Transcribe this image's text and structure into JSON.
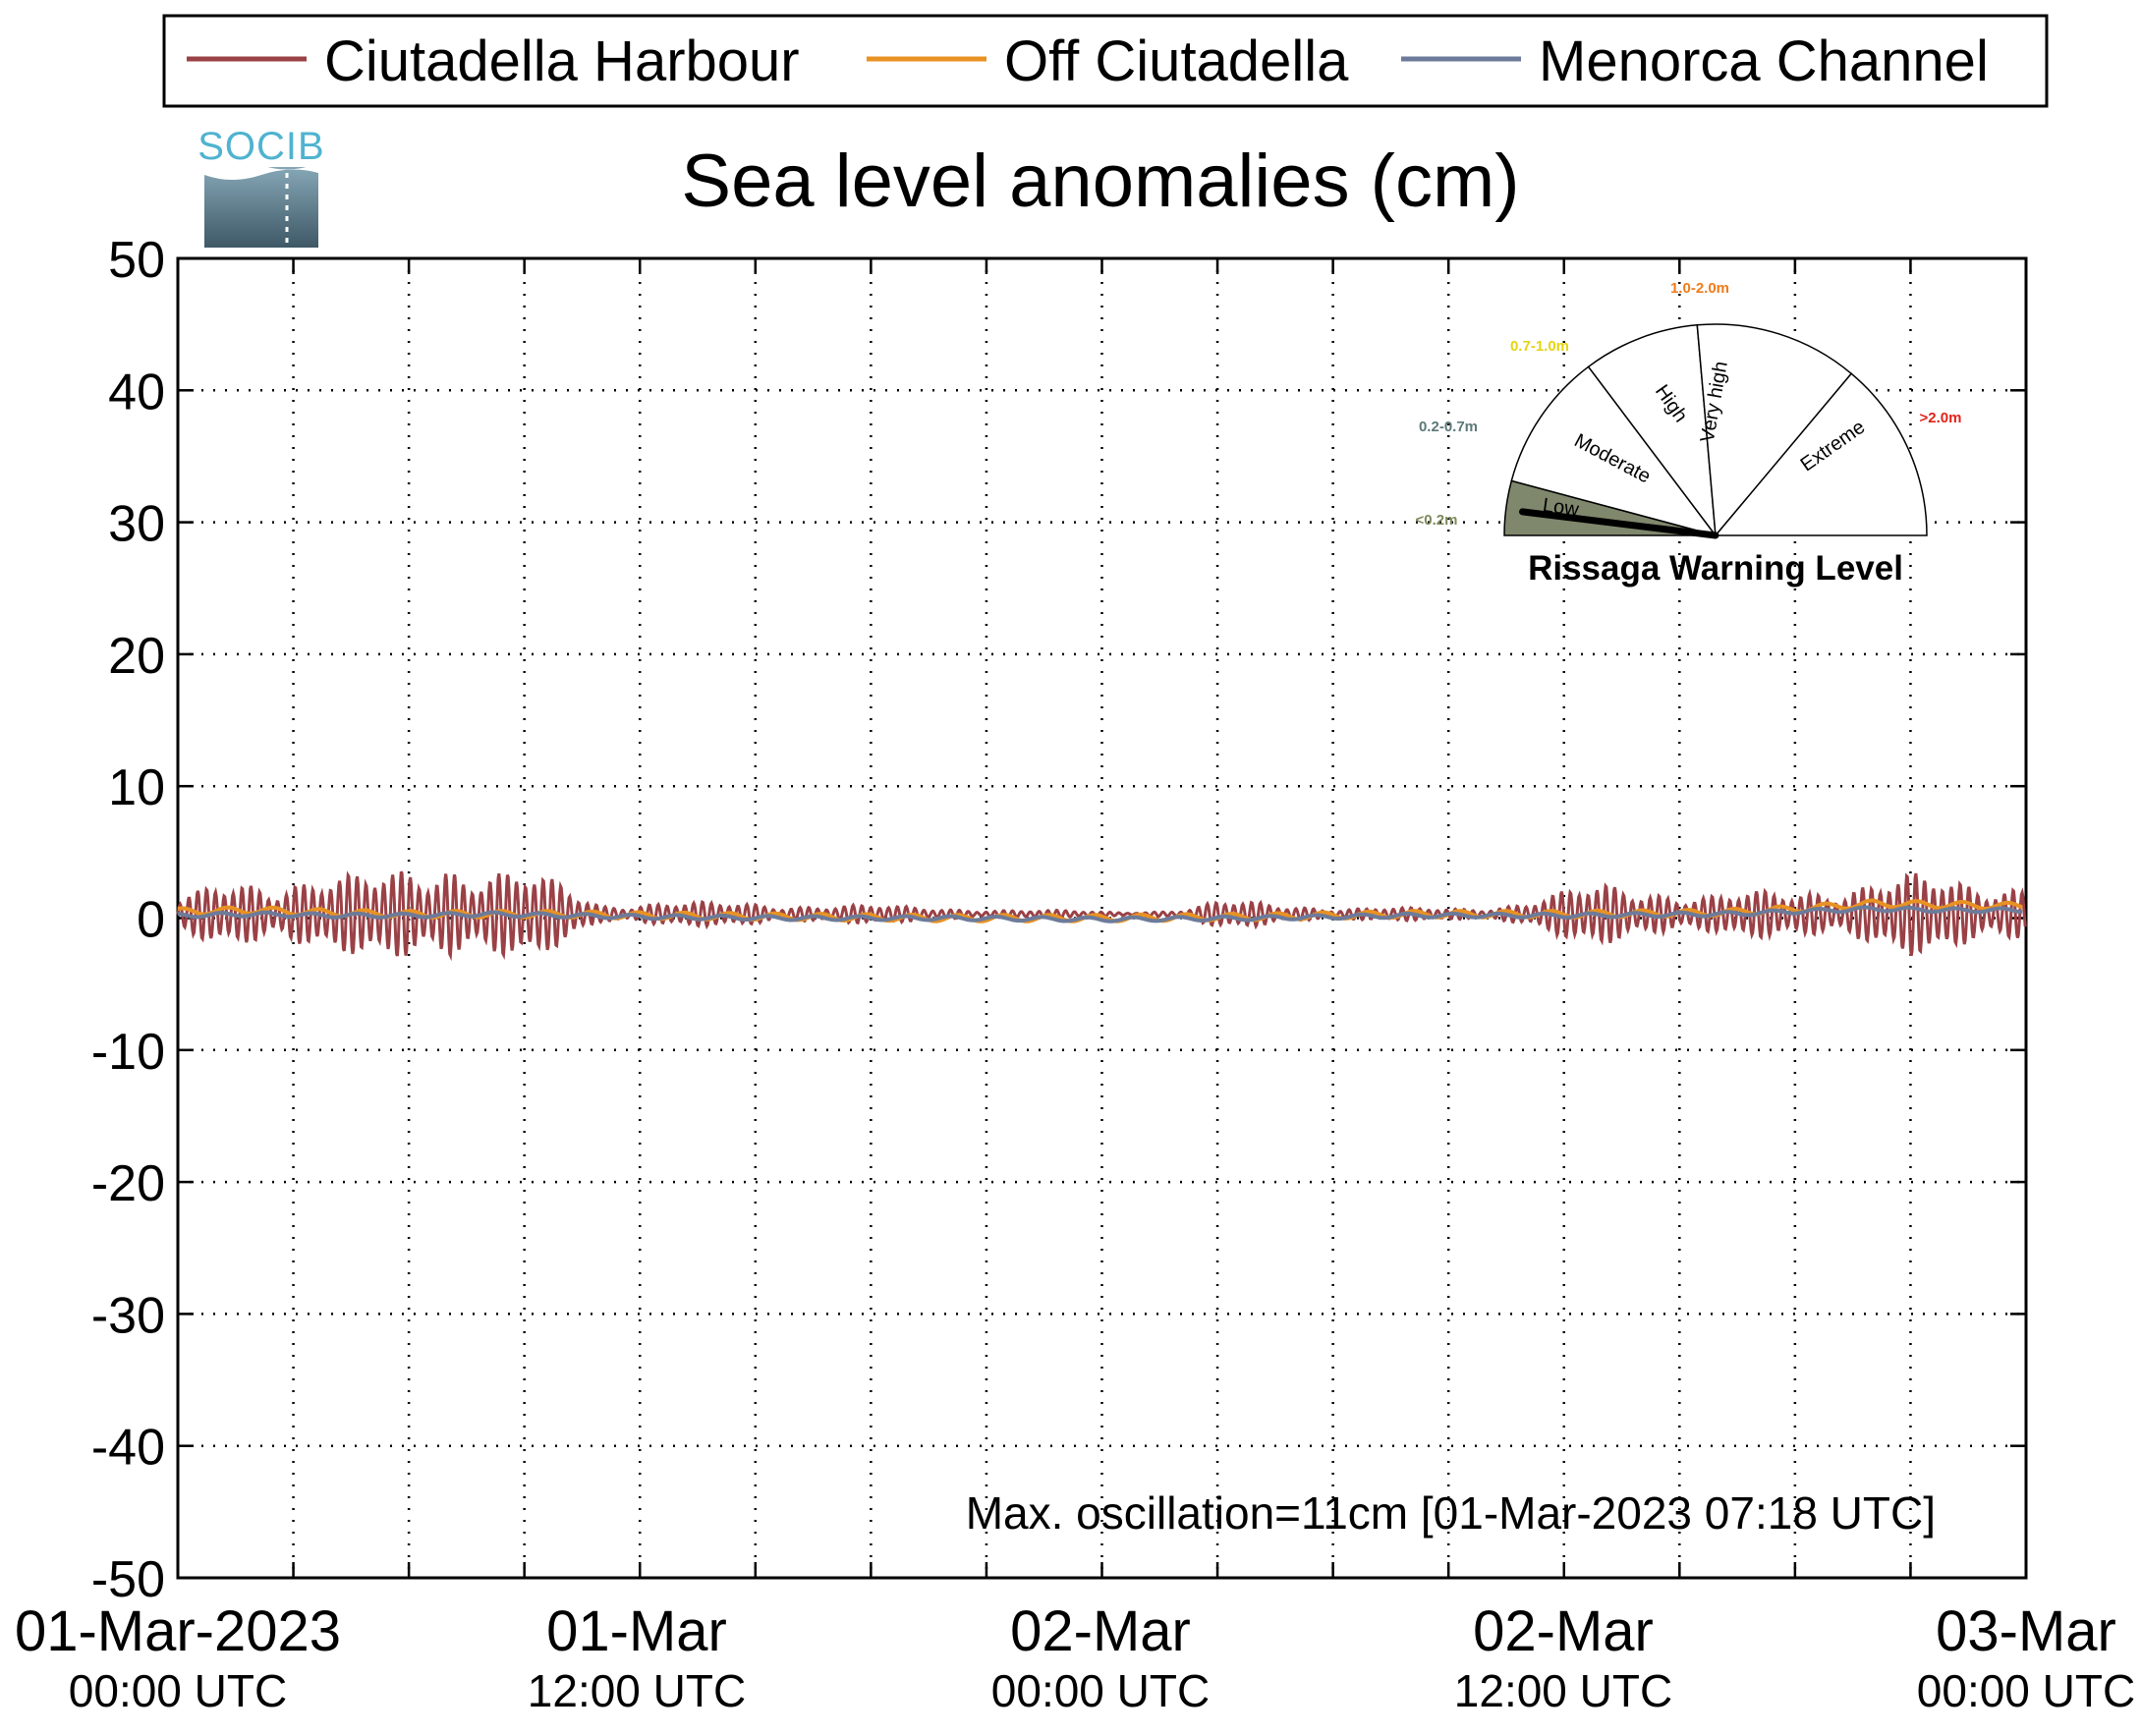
{
  "chart_data": {
    "type": "line",
    "title": "Sea level anomalies (cm)",
    "xlabel": "",
    "ylabel": "",
    "ylim": [
      -50,
      50
    ],
    "yticks": [
      50,
      40,
      30,
      20,
      10,
      0,
      -10,
      -20,
      -30,
      -40,
      -50
    ],
    "xlim": [
      "2023-03-01T00:00Z",
      "2023-03-03T00:00Z"
    ],
    "xticks": [
      {
        "top": "01-Mar-2023",
        "bottom": "00:00 UTC"
      },
      {
        "top": "01-Mar",
        "bottom": "12:00 UTC"
      },
      {
        "top": "02-Mar",
        "bottom": "00:00 UTC"
      },
      {
        "top": "02-Mar",
        "bottom": "12:00 UTC"
      },
      {
        "top": "03-Mar",
        "bottom": "00:00 UTC"
      }
    ],
    "grid": true,
    "legend_position": "top",
    "series": [
      {
        "name": "Ciutadella Harbour",
        "color": "#9a4146",
        "envelope_time_hours": [
          0,
          1,
          2,
          3,
          4,
          5,
          6,
          7,
          8,
          9,
          10,
          11,
          12,
          13,
          14,
          15,
          16,
          17,
          18,
          19,
          20,
          21,
          22,
          23,
          24,
          25,
          26,
          27,
          28,
          29,
          30,
          31,
          32,
          33,
          34,
          35,
          36,
          37,
          38,
          39,
          40,
          41,
          42,
          43,
          44,
          45,
          46,
          47,
          48
        ],
        "envelope_amplitude_cm": [
          1.0,
          2.5,
          3.0,
          3.2,
          3.2,
          3.0,
          4.0,
          5.0,
          3.8,
          3.3,
          2.5,
          0.8,
          1.0,
          1.0,
          0.9,
          0.9,
          0.8,
          0.8,
          0.7,
          0.6,
          0.5,
          0.4,
          0.3,
          0.3,
          0.2,
          0.2,
          0.3,
          1.0,
          1.0,
          0.8,
          0.5,
          0.5,
          0.5,
          0.5,
          0.6,
          1.0,
          1.8,
          2.5,
          2.5,
          1.8,
          1.5,
          1.8,
          2.0,
          2.5,
          2.8,
          3.2,
          2.8,
          2.8,
          2.8
        ]
      },
      {
        "name": "Off Ciutadella",
        "color": "#e89224",
        "time_hours": [
          0,
          2,
          4,
          6,
          8,
          10,
          12,
          16,
          20,
          24,
          28,
          32,
          36,
          40,
          42,
          44,
          46,
          48
        ],
        "values_cm": [
          0.5,
          0.6,
          0.4,
          0.3,
          0.3,
          0.3,
          0.2,
          0.1,
          0.0,
          0.0,
          0.1,
          0.3,
          0.3,
          0.4,
          0.7,
          1.1,
          1.0,
          0.9
        ]
      },
      {
        "name": "Menorca Channel",
        "color": "#6d7b9a",
        "time_hours": [
          0,
          2,
          4,
          6,
          8,
          10,
          12,
          16,
          20,
          24,
          28,
          32,
          36,
          40,
          42,
          44,
          46,
          48
        ],
        "values_cm": [
          0.2,
          0.3,
          0.2,
          0.2,
          0.3,
          0.2,
          0.1,
          0.0,
          0.0,
          -0.1,
          0.0,
          0.2,
          0.2,
          0.3,
          0.5,
          0.7,
          0.6,
          0.6
        ]
      }
    ],
    "annotation": {
      "text": "Max. oscillation=11cm [01-Mar-2023 07:18 UTC]",
      "color": "#9a4146"
    }
  },
  "logo": {
    "text": "SOCIB"
  },
  "gauge": {
    "title": "Rissaga Warning Level",
    "active_level": "Low",
    "needle_level": "<0.2m",
    "sectors": [
      {
        "label": "Low",
        "range": "<0.2m",
        "range_color": "#7e8a5e",
        "fill": "#7f876d"
      },
      {
        "label": "Moderate",
        "range": "0.2-0.7m",
        "range_color": "#5d7a78",
        "fill": "#ffffff"
      },
      {
        "label": "High",
        "range": "0.7-1.0m",
        "range_color": "#e5d410",
        "fill": "#ffffff"
      },
      {
        "label": "Very high",
        "range": "1.0-2.0m",
        "range_color": "#ef7c1c",
        "fill": "#ffffff"
      },
      {
        "label": "Extreme",
        "range": ">2.0m",
        "range_color": "#e2231a",
        "fill": "#ffffff"
      }
    ]
  }
}
